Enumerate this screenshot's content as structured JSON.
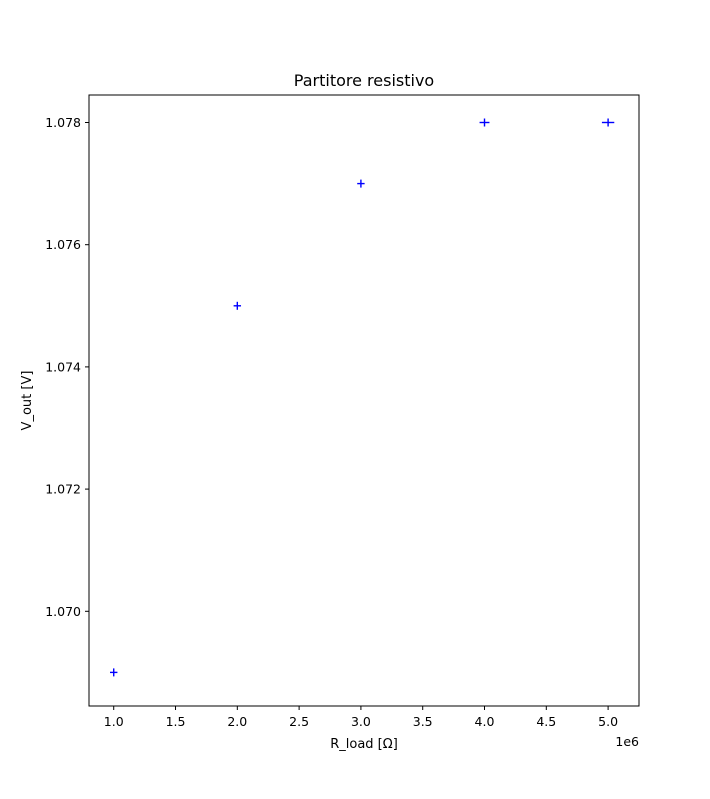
{
  "chart_data": {
    "type": "scatter",
    "title": "Partitore resistivo",
    "xlabel": "R_load [Ω]",
    "ylabel": "V_out [V]",
    "x_offset_text": "1e6",
    "xlim": [
      0.8,
      5.25
    ],
    "ylim": [
      1.06845,
      1.07845
    ],
    "x_ticks": [
      1.0,
      1.5,
      2.0,
      2.5,
      3.0,
      3.5,
      4.0,
      4.5,
      5.0
    ],
    "x_tick_labels": [
      "1.0",
      "1.5",
      "2.0",
      "2.5",
      "3.0",
      "3.5",
      "4.0",
      "4.5",
      "5.0"
    ],
    "y_ticks": [
      1.07,
      1.072,
      1.074,
      1.076,
      1.078
    ],
    "y_tick_labels": [
      "1.070",
      "1.072",
      "1.074",
      "1.076",
      "1.078"
    ],
    "grid": false,
    "series": [
      {
        "marker": "errorbar-cross",
        "color": "#0000ff",
        "x": [
          1.0,
          2.0,
          3.0,
          4.0,
          5.0
        ],
        "y": [
          1.069,
          1.075,
          1.077,
          1.078,
          1.078
        ],
        "xerr": [
          0.03,
          0.03,
          0.03,
          0.04,
          0.05
        ],
        "yerr": [
          5e-05,
          5e-05,
          5e-05,
          5e-05,
          5e-05
        ]
      }
    ]
  }
}
